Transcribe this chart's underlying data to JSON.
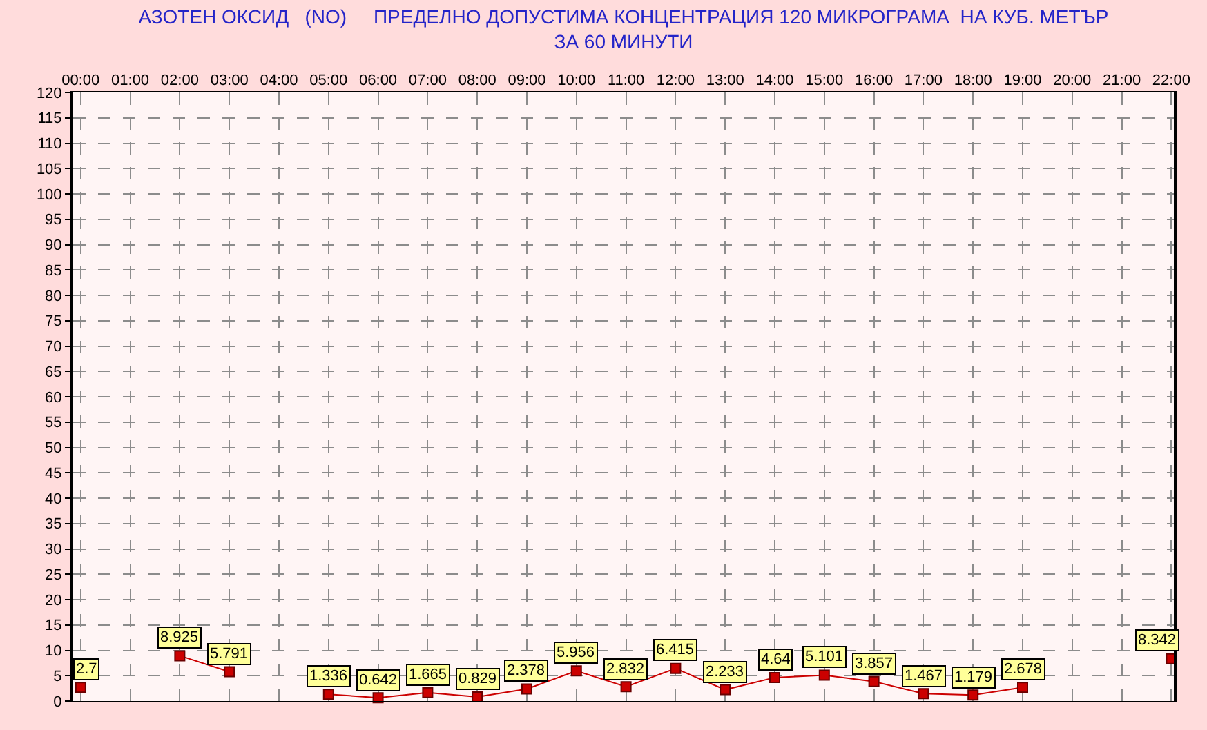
{
  "chart_data": {
    "type": "line",
    "title": "АЗОТЕН ОКСИД   (NO)     ПРЕДЕЛНО ДОПУСТИМА КОНЦЕНТРАЦИЯ 120 МИКРОГРАМА  НА КУБ. МЕТЪР\nЗА 60 МИНУТИ",
    "x": [
      0,
      1,
      2,
      3,
      4,
      5,
      6,
      7,
      8,
      9,
      10,
      11,
      12,
      13,
      14,
      15,
      16,
      17,
      18,
      19,
      20,
      21,
      22
    ],
    "xlim": [
      -0.15,
      22.05
    ],
    "xticks": [
      {
        "value": 0,
        "label": "00:00"
      },
      {
        "value": 1,
        "label": "01:00"
      },
      {
        "value": 2,
        "label": "02:00"
      },
      {
        "value": 3,
        "label": "03:00"
      },
      {
        "value": 4,
        "label": "04:00"
      },
      {
        "value": 5,
        "label": "05:00"
      },
      {
        "value": 6,
        "label": "06:00"
      },
      {
        "value": 7,
        "label": "07:00"
      },
      {
        "value": 8,
        "label": "08:00"
      },
      {
        "value": 9,
        "label": "09:00"
      },
      {
        "value": 10,
        "label": "10:00"
      },
      {
        "value": 11,
        "label": "11:00"
      },
      {
        "value": 12,
        "label": "12:00"
      },
      {
        "value": 13,
        "label": "13:00"
      },
      {
        "value": 14,
        "label": "14:00"
      },
      {
        "value": 15,
        "label": "15:00"
      },
      {
        "value": 16,
        "label": "16:00"
      },
      {
        "value": 17,
        "label": "17:00"
      },
      {
        "value": 18,
        "label": "18:00"
      },
      {
        "value": 19,
        "label": "19:00"
      },
      {
        "value": 20,
        "label": "20:00"
      },
      {
        "value": 21,
        "label": "21:00"
      },
      {
        "value": 22,
        "label": "22:00"
      }
    ],
    "ylim": [
      0,
      120
    ],
    "yticks": [
      0,
      5,
      10,
      15,
      20,
      25,
      30,
      35,
      40,
      45,
      50,
      55,
      60,
      65,
      70,
      75,
      80,
      85,
      90,
      95,
      100,
      105,
      110,
      115,
      120
    ],
    "series": [
      {
        "color": "#cc0000",
        "values": [
          2.7,
          null,
          8.925,
          5.791,
          null,
          1.336,
          0.642,
          1.665,
          0.829,
          2.378,
          5.956,
          2.832,
          6.415,
          2.233,
          4.64,
          5.101,
          3.857,
          1.467,
          1.179,
          2.678,
          null,
          null,
          8.342
        ]
      }
    ],
    "grid": true,
    "marker": "square",
    "line_style": "solid",
    "data_labels": true
  }
}
